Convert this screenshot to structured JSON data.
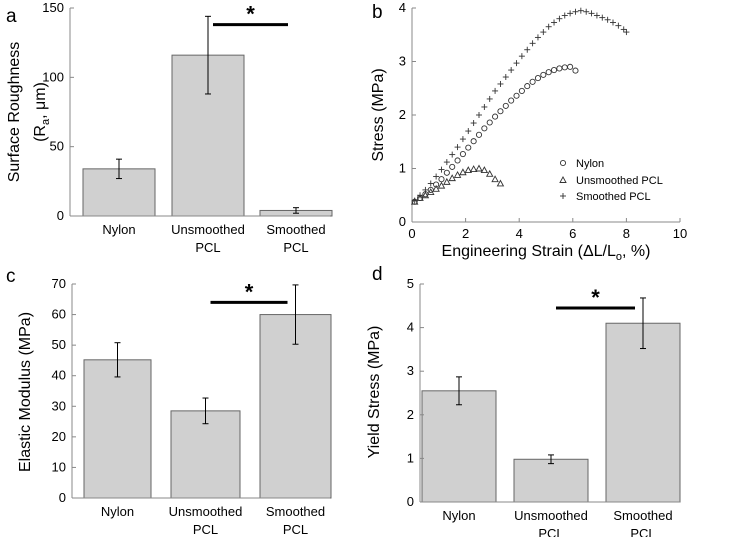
{
  "chart_data": [
    {
      "type": "bar",
      "panel": "a",
      "ylabel_main": "Surface Roughness",
      "ylabel_sub": "(R",
      "ylabel_subscript": "a",
      "ylabel_unit": ", μm)",
      "ylim": [
        0,
        150
      ],
      "yticks": [
        0,
        50,
        100,
        150
      ],
      "categories": [
        [
          "Nylon"
        ],
        [
          "Unsmoothed",
          "PCL"
        ],
        [
          "Smoothed",
          "PCL"
        ]
      ],
      "values": [
        34,
        116,
        4
      ],
      "errors": [
        7,
        28,
        2
      ],
      "significance": {
        "from": 1,
        "to": 2,
        "y": 138,
        "label": "*"
      }
    },
    {
      "type": "scatter",
      "panel": "b",
      "ylabel": "Stress (MPa)",
      "xlabel_main": "Engineering Strain (ΔL/L",
      "xlabel_subscript": "o",
      "xlabel_unit": ", %)",
      "xlim": [
        0,
        10
      ],
      "ylim": [
        0,
        4
      ],
      "xticks": [
        0,
        2,
        4,
        6,
        8,
        10
      ],
      "yticks": [
        0,
        1,
        2,
        3,
        4
      ],
      "series": [
        {
          "name": "Nylon",
          "marker": "circle",
          "x": [
            0.1,
            0.3,
            0.5,
            0.7,
            0.9,
            1.1,
            1.3,
            1.5,
            1.7,
            1.9,
            2.1,
            2.3,
            2.5,
            2.7,
            2.9,
            3.1,
            3.3,
            3.5,
            3.7,
            3.9,
            4.1,
            4.3,
            4.5,
            4.7,
            4.9,
            5.1,
            5.3,
            5.5,
            5.7,
            5.9,
            6.1
          ],
          "y": [
            0.38,
            0.45,
            0.52,
            0.6,
            0.7,
            0.8,
            0.92,
            1.03,
            1.15,
            1.27,
            1.39,
            1.51,
            1.63,
            1.75,
            1.86,
            1.97,
            2.07,
            2.17,
            2.27,
            2.36,
            2.45,
            2.54,
            2.62,
            2.69,
            2.75,
            2.8,
            2.84,
            2.87,
            2.89,
            2.9,
            2.83
          ]
        },
        {
          "name": "Unsmoothed PCL",
          "marker": "triangle",
          "x": [
            0.1,
            0.3,
            0.5,
            0.7,
            0.9,
            1.1,
            1.3,
            1.5,
            1.7,
            1.9,
            2.1,
            2.3,
            2.5,
            2.7,
            2.9,
            3.1,
            3.3
          ],
          "y": [
            0.38,
            0.45,
            0.5,
            0.56,
            0.62,
            0.68,
            0.75,
            0.82,
            0.88,
            0.93,
            0.97,
            0.99,
            1.0,
            0.97,
            0.9,
            0.8,
            0.72
          ]
        },
        {
          "name": "Smoothed PCL",
          "marker": "plus",
          "x": [
            0.1,
            0.3,
            0.5,
            0.7,
            0.9,
            1.1,
            1.3,
            1.5,
            1.7,
            1.9,
            2.1,
            2.3,
            2.5,
            2.7,
            2.9,
            3.1,
            3.3,
            3.5,
            3.7,
            3.9,
            4.1,
            4.3,
            4.5,
            4.7,
            4.9,
            5.1,
            5.3,
            5.5,
            5.7,
            5.9,
            6.1,
            6.3,
            6.5,
            6.7,
            6.9,
            7.1,
            7.3,
            7.5,
            7.7,
            7.9,
            8.0
          ],
          "y": [
            0.4,
            0.5,
            0.6,
            0.72,
            0.85,
            0.98,
            1.12,
            1.26,
            1.4,
            1.55,
            1.7,
            1.85,
            2.0,
            2.15,
            2.3,
            2.45,
            2.58,
            2.71,
            2.84,
            2.97,
            3.1,
            3.22,
            3.34,
            3.45,
            3.55,
            3.65,
            3.73,
            3.8,
            3.86,
            3.9,
            3.93,
            3.95,
            3.93,
            3.9,
            3.86,
            3.82,
            3.78,
            3.73,
            3.67,
            3.6,
            3.55
          ]
        }
      ],
      "legend": {
        "placement": "bottom-right",
        "entries": [
          "Nylon",
          "Unsmoothed PCL",
          "Smoothed PCL"
        ]
      }
    },
    {
      "type": "bar",
      "panel": "c",
      "ylabel": "Elastic Modulus (MPa)",
      "ylim": [
        0,
        70
      ],
      "yticks": [
        0,
        10,
        20,
        30,
        40,
        50,
        60,
        70
      ],
      "categories": [
        [
          "Nylon"
        ],
        [
          "Unsmoothed",
          "PCL"
        ],
        [
          "Smoothed",
          "PCL"
        ]
      ],
      "values": [
        45.2,
        28.5,
        60
      ],
      "errors": [
        5.6,
        4.2,
        9.7
      ],
      "significance": {
        "from": 1,
        "to": 2,
        "y": 64,
        "label": "*"
      }
    },
    {
      "type": "bar",
      "panel": "d",
      "ylabel": "Yield Stress (MPa)",
      "ylim": [
        0,
        5
      ],
      "yticks": [
        0,
        1,
        2,
        3,
        4,
        5
      ],
      "categories": [
        [
          "Nylon"
        ],
        [
          "Unsmoothed",
          "PCL"
        ],
        [
          "Smoothed",
          "PCL"
        ]
      ],
      "values": [
        2.55,
        0.98,
        4.1
      ],
      "errors": [
        0.32,
        0.1,
        0.58
      ],
      "significance": {
        "from": 1,
        "to": 2,
        "y": 4.45,
        "label": "*"
      }
    }
  ]
}
